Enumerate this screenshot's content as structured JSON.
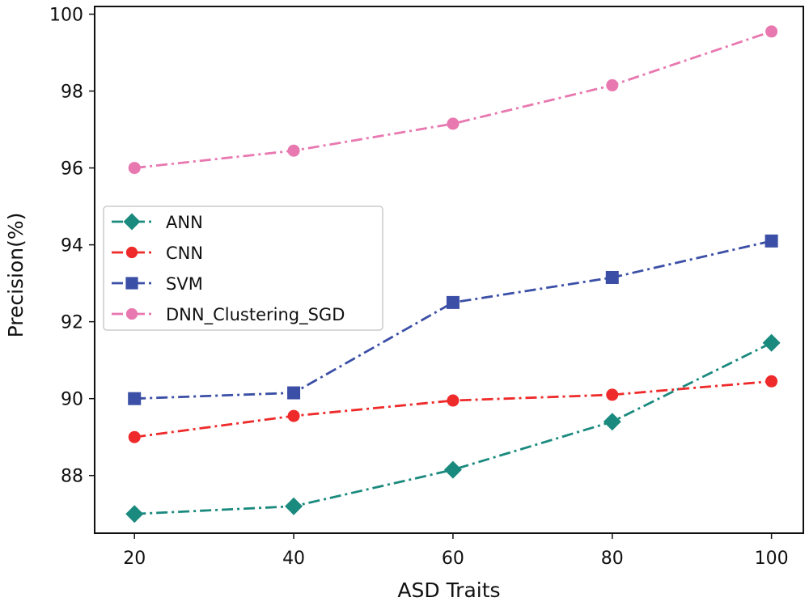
{
  "chart_data": {
    "type": "line",
    "xlabel": "ASD Traits",
    "ylabel": "Precision(%)",
    "x": [
      20,
      40,
      60,
      80,
      100
    ],
    "x_ticks": [
      "20",
      "40",
      "60",
      "80",
      "100"
    ],
    "y_ticks": [
      "88",
      "90",
      "92",
      "94",
      "96",
      "98",
      "100"
    ],
    "xlim": [
      15,
      104
    ],
    "ylim": [
      86.5,
      100.2
    ],
    "grid": false,
    "legend_position": "center-left",
    "series": [
      {
        "name": "ANN",
        "color": "#1a8a7e",
        "marker": "diamond",
        "values": [
          87.0,
          87.2,
          88.15,
          89.4,
          91.45
        ]
      },
      {
        "name": "CNN",
        "color": "#ee2a2a",
        "marker": "circle",
        "values": [
          89.0,
          89.55,
          89.95,
          90.1,
          90.45
        ]
      },
      {
        "name": "SVM",
        "color": "#3b4fa6",
        "marker": "square",
        "values": [
          90.0,
          90.15,
          92.5,
          93.15,
          94.1
        ]
      },
      {
        "name": "DNN_Clustering_SGD",
        "color": "#e878b0",
        "marker": "circle",
        "values": [
          96.0,
          96.45,
          97.15,
          98.15,
          99.55
        ]
      }
    ]
  }
}
